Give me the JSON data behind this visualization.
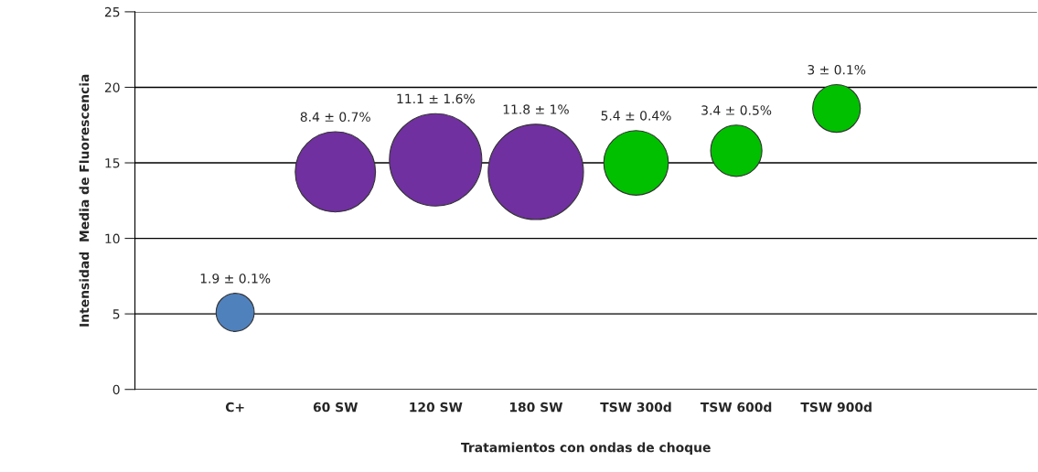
{
  "chart_data": {
    "type": "bubble",
    "xlabel": "Tratamientos con ondas de choque",
    "ylabel": "Intensidad  Media de Fluorescencia",
    "categories": [
      "C+",
      "60 SW",
      "120 SW",
      "180 SW",
      "TSW 300d",
      "TSW 600d",
      "TSW 900d"
    ],
    "values": [
      5.1,
      14.4,
      15.2,
      14.4,
      15.0,
      15.8,
      18.6
    ],
    "sizes": [
      0.16,
      0.71,
      0.94,
      1,
      0.46,
      0.29,
      0.25
    ],
    "value_labels": [
      "1.9 ± 0.1%",
      "8.4 ± 0.7%",
      "11.1 ± 1.6%",
      "11.8 ± 1%",
      "5.4 ± 0.4%",
      "3.4 ± 0.5%",
      "3 ± 0.1%"
    ],
    "colors": [
      "#4f81bd",
      "#7030a0",
      "#7030a0",
      "#7030a0",
      "#00c000",
      "#00c000",
      "#00c000"
    ],
    "ylim": [
      0,
      25
    ],
    "yticks": [
      0,
      5,
      10,
      15,
      20,
      25
    ],
    "grid": "y"
  }
}
